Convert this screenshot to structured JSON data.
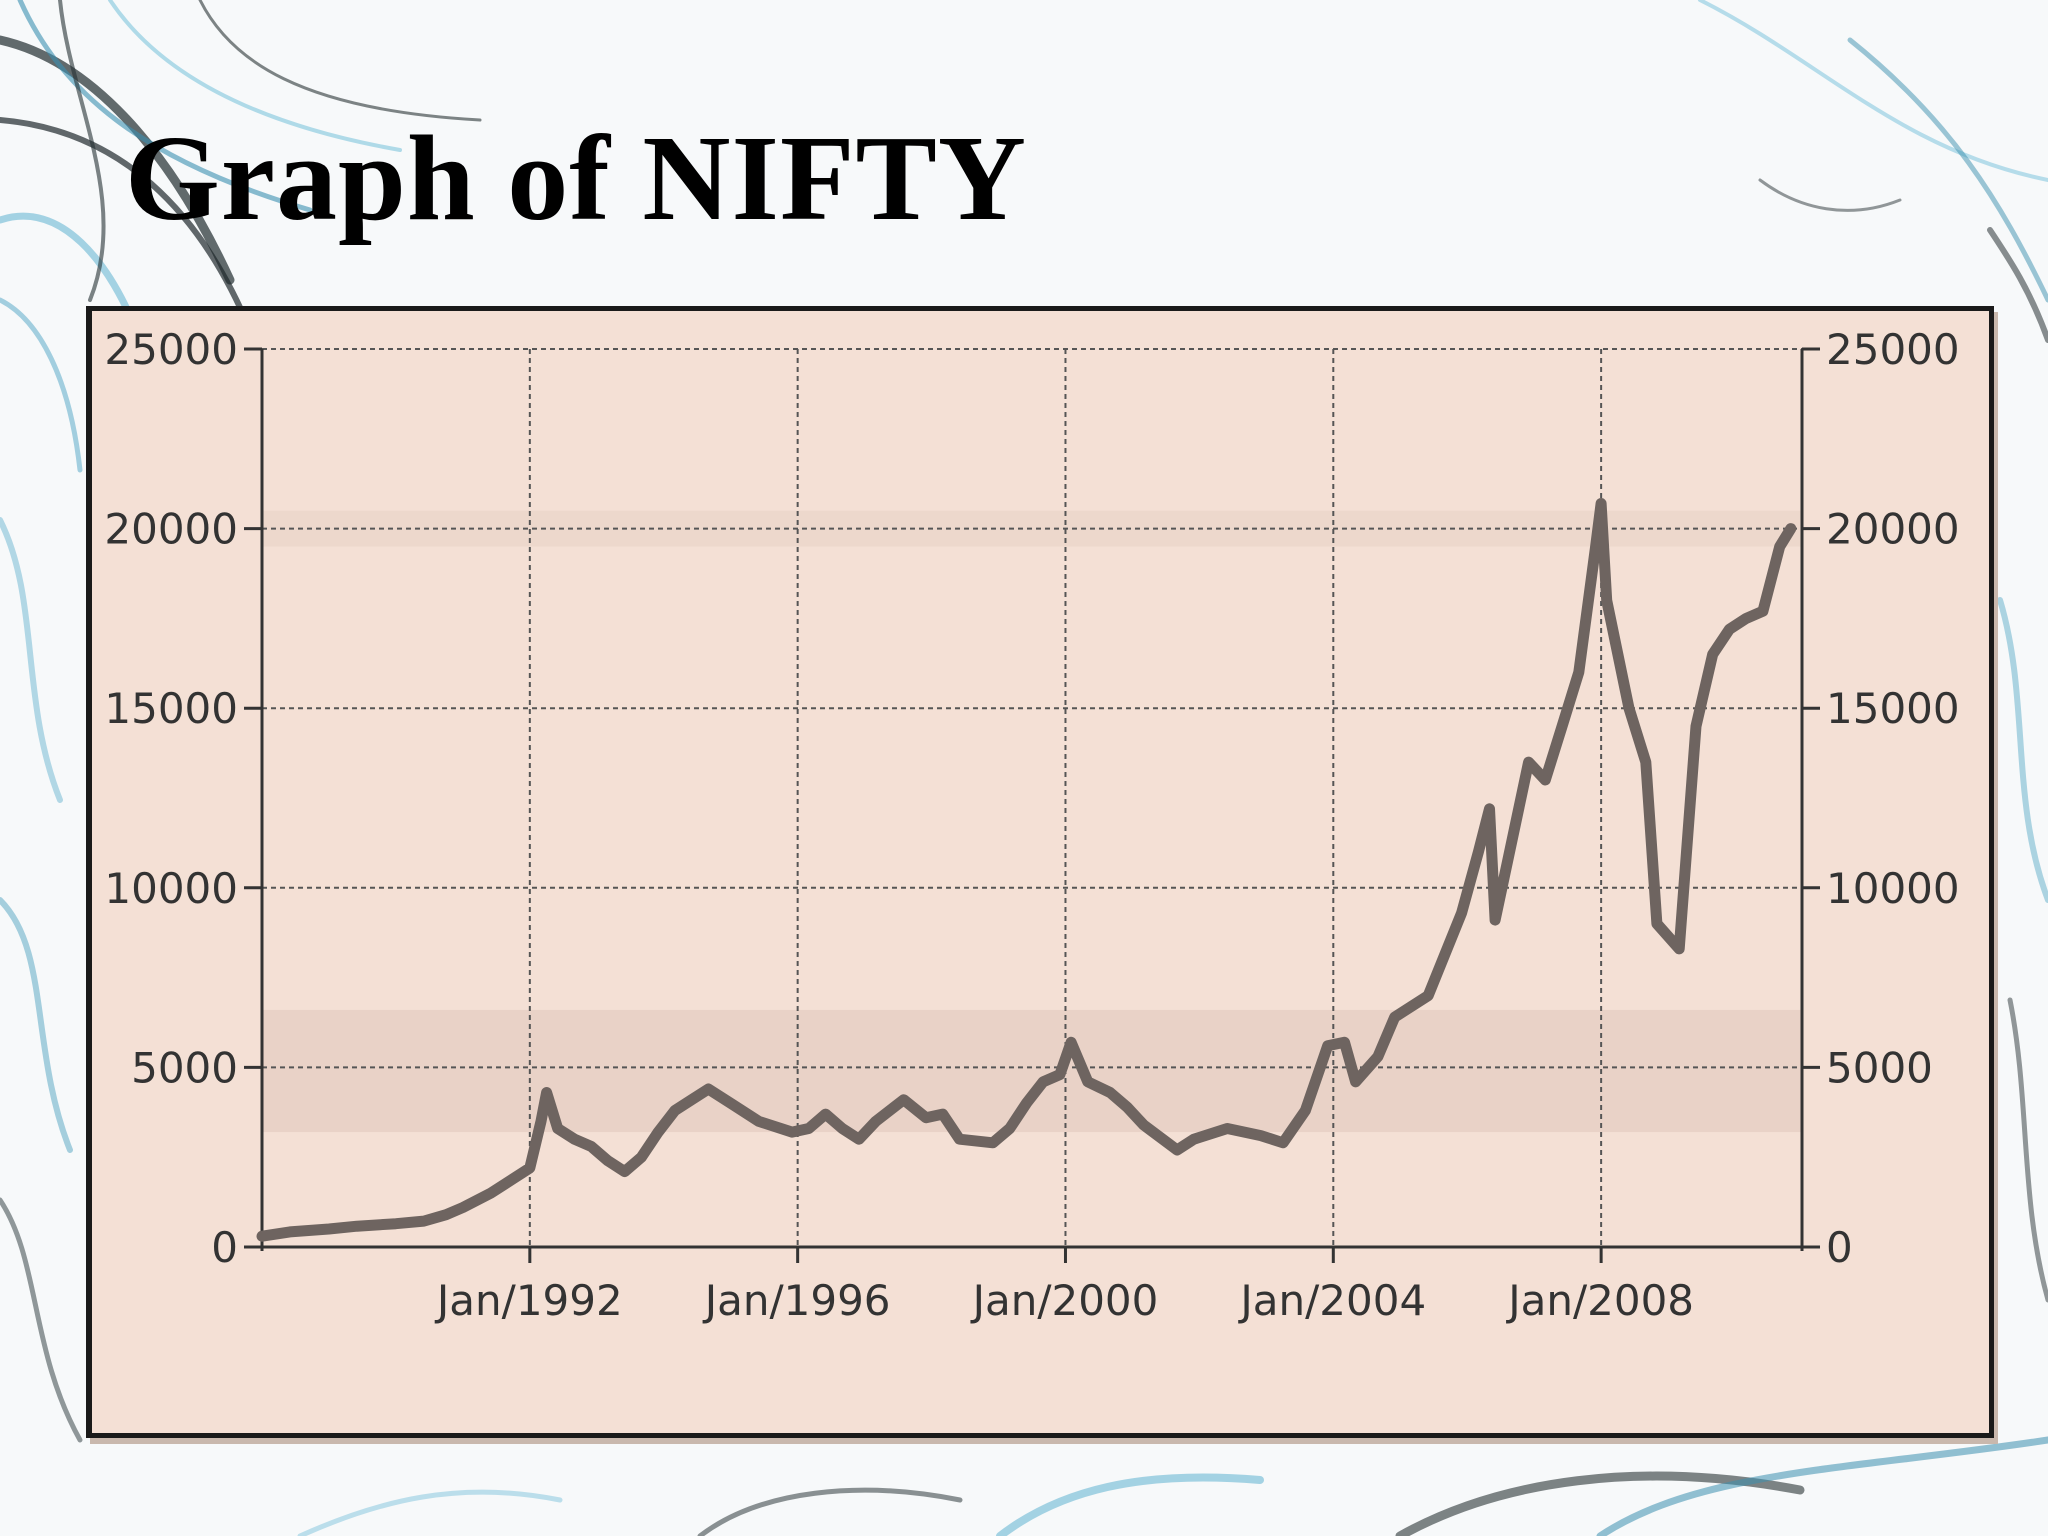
{
  "slide": {
    "title": "Graph of NIFTY"
  },
  "colors": {
    "plot_bg": "#f4e0d5",
    "band": "#e6cfc4",
    "line": "#6e6460",
    "grid": "#555555",
    "axis": "#333333"
  },
  "chart_data": {
    "type": "line",
    "title": "",
    "xlabel": "",
    "ylabel": "",
    "x_ticks": [
      "Jan/1992",
      "Jan/1996",
      "Jan/2000",
      "Jan/2004",
      "Jan/2008"
    ],
    "y_ticks": [
      "0",
      "5000",
      "10000",
      "15000",
      "20000",
      "25000"
    ],
    "y_ticks_right": [
      "0",
      "5000",
      "10000",
      "15000",
      "20000",
      "25000"
    ],
    "ylim": [
      0,
      25000
    ],
    "xlim": [
      "1988-01",
      "2011-01"
    ],
    "grid": true,
    "legend": "none",
    "series": [
      {
        "points": [
          [
            "1988-01",
            300
          ],
          [
            "1988-06",
            420
          ],
          [
            "1989-01",
            500
          ],
          [
            "1989-06",
            580
          ],
          [
            "1990-01",
            650
          ],
          [
            "1990-06",
            720
          ],
          [
            "1990-10",
            900
          ],
          [
            "1991-01",
            1100
          ],
          [
            "1991-06",
            1500
          ],
          [
            "1991-10",
            1900
          ],
          [
            "1992-01",
            2200
          ],
          [
            "1992-03",
            3500
          ],
          [
            "1992-04",
            4300
          ],
          [
            "1992-06",
            3300
          ],
          [
            "1992-09",
            3000
          ],
          [
            "1992-12",
            2800
          ],
          [
            "1993-03",
            2400
          ],
          [
            "1993-06",
            2100
          ],
          [
            "1993-09",
            2500
          ],
          [
            "1993-12",
            3200
          ],
          [
            "1994-03",
            3800
          ],
          [
            "1994-06",
            4100
          ],
          [
            "1994-09",
            4400
          ],
          [
            "1995-01",
            4000
          ],
          [
            "1995-06",
            3500
          ],
          [
            "1995-12",
            3200
          ],
          [
            "1996-03",
            3300
          ],
          [
            "1996-06",
            3700
          ],
          [
            "1996-09",
            3300
          ],
          [
            "1996-12",
            3000
          ],
          [
            "1997-03",
            3500
          ],
          [
            "1997-08",
            4100
          ],
          [
            "1997-12",
            3600
          ],
          [
            "1998-03",
            3700
          ],
          [
            "1998-06",
            3000
          ],
          [
            "1998-12",
            2900
          ],
          [
            "1999-03",
            3300
          ],
          [
            "1999-06",
            4000
          ],
          [
            "1999-09",
            4600
          ],
          [
            "1999-12",
            4800
          ],
          [
            "2000-02",
            5700
          ],
          [
            "2000-05",
            4600
          ],
          [
            "2000-09",
            4300
          ],
          [
            "2000-12",
            3900
          ],
          [
            "2001-03",
            3400
          ],
          [
            "2001-09",
            2700
          ],
          [
            "2001-12",
            3000
          ],
          [
            "2002-06",
            3300
          ],
          [
            "2002-12",
            3100
          ],
          [
            "2003-04",
            2900
          ],
          [
            "2003-08",
            3800
          ],
          [
            "2003-12",
            5600
          ],
          [
            "2004-03",
            5700
          ],
          [
            "2004-05",
            4600
          ],
          [
            "2004-09",
            5300
          ],
          [
            "2004-12",
            6400
          ],
          [
            "2005-06",
            7000
          ],
          [
            "2005-12",
            9300
          ],
          [
            "2006-03",
            11000
          ],
          [
            "2006-05",
            12200
          ],
          [
            "2006-06",
            9100
          ],
          [
            "2006-12",
            13500
          ],
          [
            "2007-03",
            13000
          ],
          [
            "2007-06",
            14500
          ],
          [
            "2007-09",
            16000
          ],
          [
            "2007-12",
            19500
          ],
          [
            "2008-01",
            20700
          ],
          [
            "2008-02",
            18000
          ],
          [
            "2008-06",
            15000
          ],
          [
            "2008-09",
            13500
          ],
          [
            "2008-11",
            9000
          ],
          [
            "2009-03",
            8300
          ],
          [
            "2009-06",
            14500
          ],
          [
            "2009-09",
            16500
          ],
          [
            "2009-12",
            17200
          ],
          [
            "2010-03",
            17500
          ],
          [
            "2010-06",
            17700
          ],
          [
            "2010-09",
            19500
          ],
          [
            "2010-11",
            20000
          ]
        ]
      }
    ]
  }
}
